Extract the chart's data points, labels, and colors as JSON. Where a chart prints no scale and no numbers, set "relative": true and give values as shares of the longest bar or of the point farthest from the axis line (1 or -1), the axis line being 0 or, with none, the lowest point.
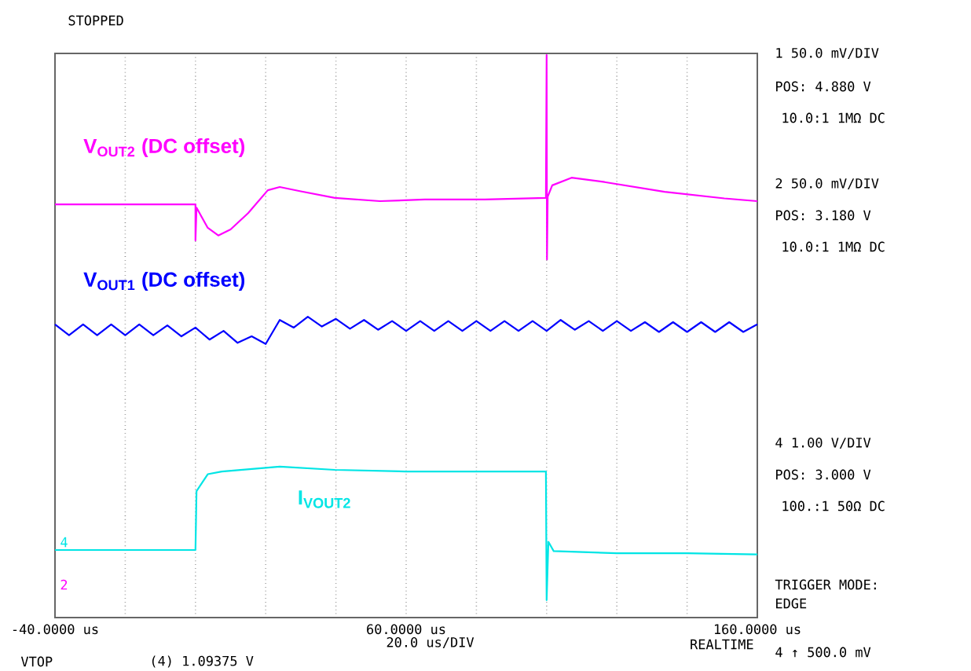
{
  "chart_data": {
    "type": "line",
    "relative": true,
    "grid": "x",
    "marker": "none",
    "line_style": "solid",
    "xlim": [
      -40,
      160
    ],
    "xticks": [
      {
        "value": -40,
        "label": "-40.0000 us"
      },
      {
        "value": -20,
        "label": null
      },
      {
        "value": 0,
        "label": null
      },
      {
        "value": 20,
        "label": null
      },
      {
        "value": 40,
        "label": null
      },
      {
        "value": 60,
        "label": "60.0000 us"
      },
      {
        "value": 80,
        "label": null
      },
      {
        "value": 100,
        "label": null
      },
      {
        "value": 120,
        "label": null
      },
      {
        "value": 140,
        "label": null
      },
      {
        "value": 160,
        "label": "160.0000 us"
      }
    ],
    "series": [
      {
        "name": "V$_{OUT2}$ (DC offset)",
        "color": "#ff00ff",
        "x": [
          -40,
          -20,
          0,
          0,
          0.3,
          3.5,
          6.5,
          10,
          15,
          20.6,
          24,
          30,
          39.7,
          52.5,
          65.3,
          82.4,
          99.8,
          100,
          100.1,
          100.3,
          101.6,
          107.1,
          116.5,
          133.6,
          150.6,
          160
        ],
        "values": [
          0.726,
          0.726,
          0.726,
          0.66,
          0.72,
          0.683,
          0.669,
          0.68,
          0.71,
          0.752,
          0.758,
          0.75,
          0.738,
          0.732,
          0.735,
          0.735,
          0.738,
          1.0,
          0.625,
          0.74,
          0.761,
          0.775,
          0.767,
          0.749,
          0.737,
          0.732
        ]
      },
      {
        "name": "V$_{OUT1}$ (DC offset)",
        "color": "#0000ff",
        "x": [
          -40,
          -36,
          -32,
          -28,
          -24,
          -20,
          -16,
          -12,
          -8,
          -4,
          0,
          4,
          8,
          12,
          16,
          20,
          24,
          28,
          32,
          36,
          40,
          44,
          48,
          52,
          56,
          60,
          64,
          68,
          72,
          76,
          80,
          84,
          88,
          92,
          96,
          100,
          104,
          108,
          112,
          116,
          120,
          124,
          128,
          132,
          136,
          140,
          144,
          148,
          152,
          156,
          160
        ],
        "values": [
          0.506,
          0.486,
          0.506,
          0.486,
          0.506,
          0.486,
          0.506,
          0.486,
          0.504,
          0.484,
          0.5,
          0.478,
          0.494,
          0.472,
          0.484,
          0.47,
          0.514,
          0.5,
          0.52,
          0.502,
          0.516,
          0.498,
          0.514,
          0.496,
          0.512,
          0.494,
          0.512,
          0.494,
          0.512,
          0.494,
          0.512,
          0.494,
          0.512,
          0.494,
          0.512,
          0.494,
          0.514,
          0.496,
          0.512,
          0.494,
          0.512,
          0.494,
          0.51,
          0.492,
          0.51,
          0.492,
          0.51,
          0.492,
          0.51,
          0.492,
          0.506
        ]
      },
      {
        "name": "I$_{VOUT2}$",
        "color": "#00e5e5",
        "x": [
          -40,
          -20,
          0,
          0.3,
          3.5,
          7.5,
          24,
          39.7,
          60,
          82.4,
          99.8,
          100,
          100.5,
          102,
          120,
          140,
          160
        ],
        "values": [
          0.092,
          0.092,
          0.092,
          0.2,
          0.231,
          0.236,
          0.245,
          0.239,
          0.236,
          0.236,
          0.236,
          0.0,
          0.107,
          0.09,
          0.086,
          0.086,
          0.084
        ]
      }
    ],
    "annotations": [
      "STOPPED",
      "1 50.0 mV/DIV",
      "POS: 4.880 V",
      "10.0:1 1MΩ DC",
      "2 50.0 mV/DIV",
      "POS: 3.180 V",
      "10.0:1 1MΩ DC",
      "4 1.00 V/DIV",
      "POS: 3.000 V",
      "100.:1 50Ω DC",
      "TRIGGER MODE:",
      "EDGE",
      "4 ↑ 500.0 mV",
      "20.0 us/DIV",
      "REALTIME",
      "VTOP",
      "(4) 1.09375 V",
      "4",
      "2"
    ]
  }
}
